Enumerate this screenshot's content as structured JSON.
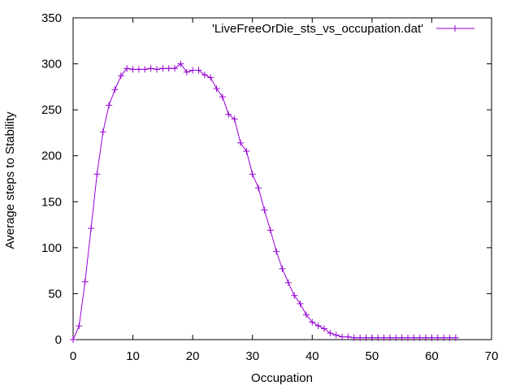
{
  "chart_data": {
    "type": "line",
    "title": "",
    "xlabel": "Occupation",
    "ylabel": "Average steps to Stability",
    "xlim": [
      0,
      70
    ],
    "ylim": [
      0,
      350
    ],
    "xticks": [
      0,
      10,
      20,
      30,
      40,
      50,
      60,
      70
    ],
    "yticks": [
      0,
      50,
      100,
      150,
      200,
      250,
      300,
      350
    ],
    "grid": false,
    "legend_position": "top-right",
    "series": [
      {
        "name": "'LiveFreeOrDie_sts_vs_occupation.dat'",
        "color": "#9400d3",
        "marker": "plus",
        "x": [
          0,
          1,
          2,
          3,
          4,
          5,
          6,
          7,
          8,
          9,
          10,
          11,
          12,
          13,
          14,
          15,
          16,
          17,
          18,
          19,
          20,
          21,
          22,
          23,
          24,
          25,
          26,
          27,
          28,
          29,
          30,
          31,
          32,
          33,
          34,
          35,
          36,
          37,
          38,
          39,
          40,
          41,
          42,
          43,
          44,
          45,
          46,
          47,
          48,
          49,
          50,
          51,
          52,
          53,
          54,
          55,
          56,
          57,
          58,
          59,
          60,
          61,
          62,
          63,
          64
        ],
        "y": [
          0,
          15,
          63,
          121,
          180,
          226,
          255,
          272,
          287,
          295,
          294,
          294,
          294,
          295,
          294,
          295,
          295,
          295,
          300,
          291,
          293,
          293,
          288,
          285,
          273,
          264,
          245,
          240,
          214,
          205,
          180,
          165,
          141,
          119,
          96,
          77,
          62,
          48,
          39,
          27,
          19,
          15,
          12,
          7,
          5,
          3,
          3,
          2,
          2,
          2,
          2,
          2,
          2,
          2,
          2,
          2,
          2,
          2,
          2,
          2,
          2,
          2,
          2,
          2,
          2
        ]
      }
    ]
  }
}
